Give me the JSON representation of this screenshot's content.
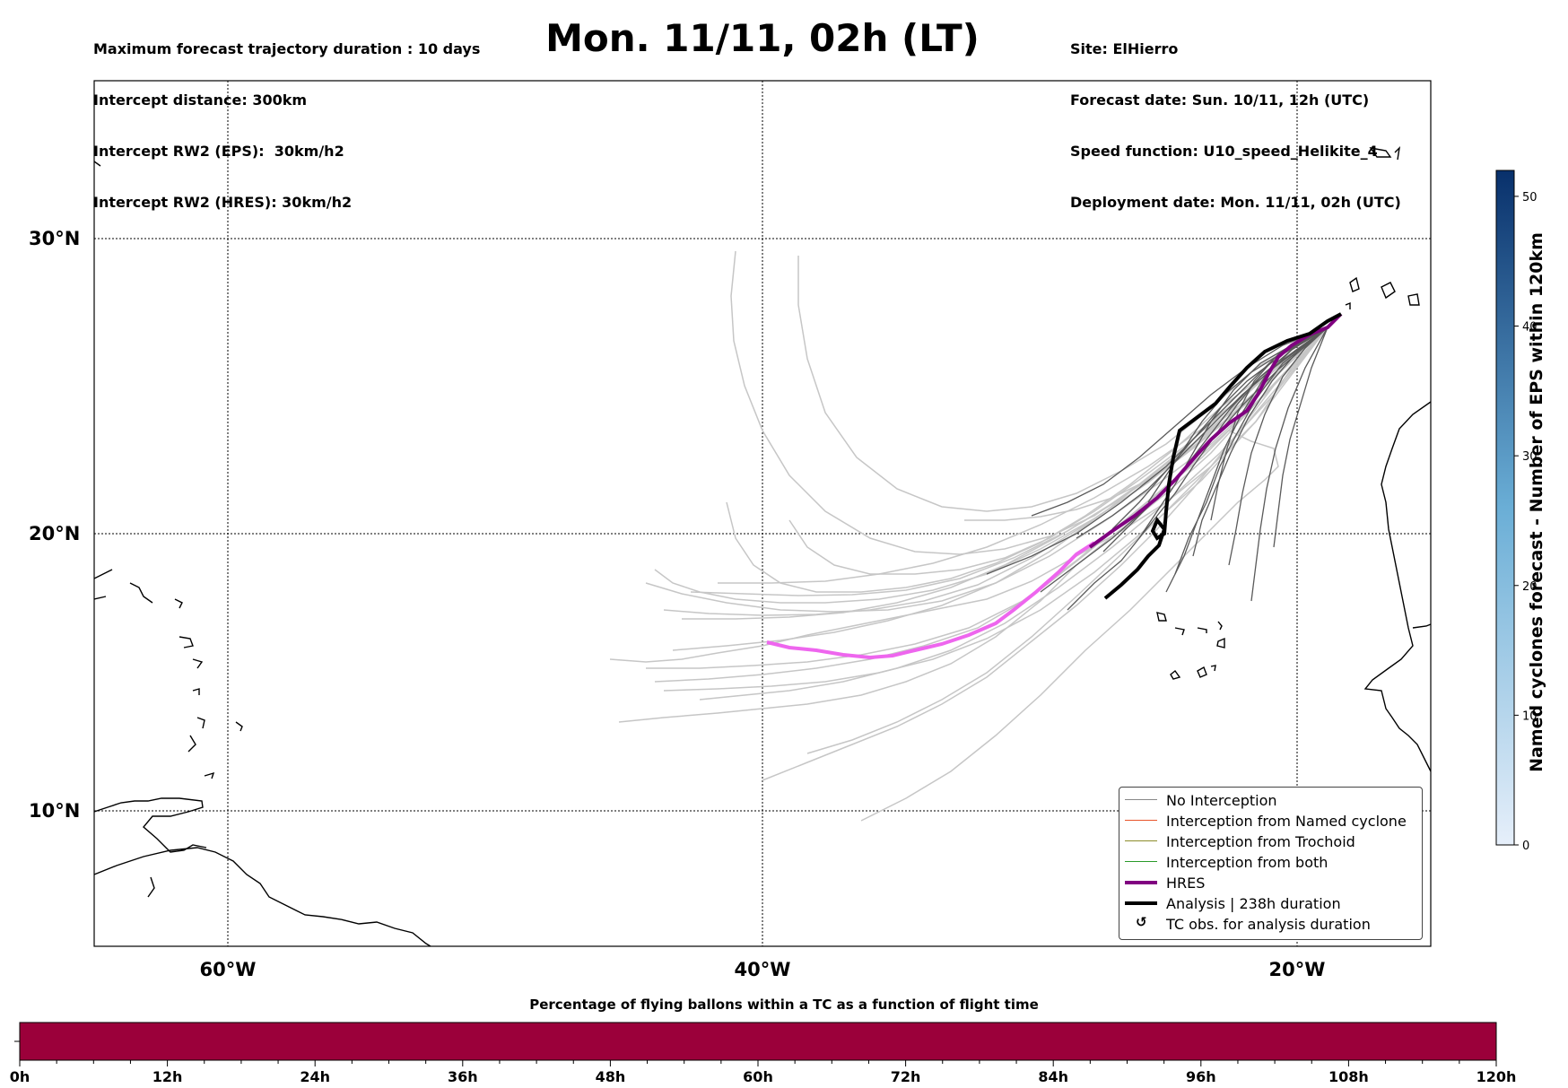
{
  "header": {
    "left_lines": [
      "Maximum forecast trajectory duration : 10 days",
      "Intercept distance: 300km",
      "Intercept RW2 (EPS):  30km/h2",
      "Intercept RW2 (HRES): 30km/h2"
    ],
    "title": "Mon. 11/11, 02h (LT)",
    "right_lines": [
      "Site: ElHierro",
      "Forecast date: Sun. 10/11, 12h (UTC)",
      "Speed function: U10_speed_Helikite_4",
      "Deployment date: Mon. 11/11, 02h (UTC)"
    ]
  },
  "map": {
    "lat_labels": [
      "30°N",
      "20°N",
      "10°N"
    ],
    "lon_labels": [
      "60°W",
      "40°W",
      "20°W"
    ],
    "extent": {
      "lon_min": -65,
      "lon_max": -15,
      "lat_min": 5.3,
      "lat_max": 35.7
    },
    "colors": {
      "no_interception": "#bdbdbd",
      "no_interception_dark": "#555555",
      "hres": "#800080",
      "hres_light": "#ee66ee",
      "analysis": "#000000"
    }
  },
  "legend": {
    "items": [
      {
        "label": "No Interception",
        "color": "#888888",
        "style": "thin"
      },
      {
        "label": "Interception from Named cyclone",
        "color": "#e8552a",
        "style": "thin"
      },
      {
        "label": "Interception from Trochoid",
        "color": "#8c8c2a",
        "style": "thin"
      },
      {
        "label": "Interception from both",
        "color": "#2a9a2a",
        "style": "thin"
      },
      {
        "label": "HRES",
        "color": "#800080",
        "style": "thick"
      },
      {
        "label": "Analysis | 238h duration",
        "color": "#000000",
        "style": "thick"
      },
      {
        "label": "TC obs. for analysis duration",
        "color": "#000000",
        "style": "glyph",
        "icon": "cyclone-icon"
      }
    ]
  },
  "colorbar": {
    "title": "Named cyclones forecast - Number of EPS within 120km",
    "ticks": [
      "0",
      "10",
      "20",
      "30",
      "40",
      "50"
    ],
    "min": 0,
    "max": 52,
    "color_low": "#e6effa",
    "color_high": "#08306b"
  },
  "bottom_bar": {
    "title": "Percentage of flying ballons within a TC as a function of flight time",
    "ticks": [
      "0h",
      "12h",
      "24h",
      "36h",
      "48h",
      "60h",
      "72h",
      "84h",
      "96h",
      "108h",
      "120h"
    ],
    "fill_color": "#9b003a",
    "fill_fraction": 1.0
  }
}
